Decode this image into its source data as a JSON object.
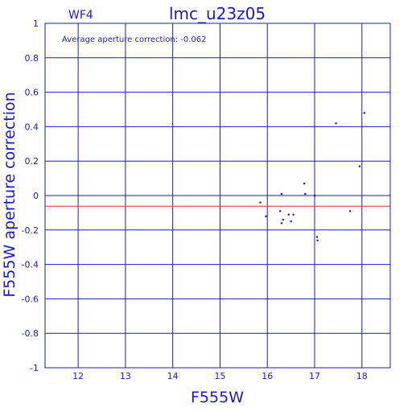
{
  "chart_data": {
    "type": "scatter",
    "title": "lmc_u23z05",
    "panel_label": "WF4",
    "annotation": "Average aperture correction: -0.062",
    "xlabel": "F555W",
    "ylabel": "F555W aperture correction",
    "xlim": [
      11.3,
      18.6
    ],
    "ylim": [
      -1,
      1
    ],
    "xticks": [
      "12",
      "13",
      "14",
      "15",
      "16",
      "17",
      "18"
    ],
    "yticks": [
      "-1",
      "-0.8",
      "-0.6",
      "-0.4",
      "-0.2",
      "0",
      "0.2",
      "0.4",
      "0.6",
      "0.8",
      "1"
    ],
    "grid": true,
    "reference_line": {
      "y": -0.062,
      "color": "#e03030"
    },
    "zero_line": {
      "y": 0
    },
    "colors": {
      "axes": "#1a1acc",
      "points": "#1a1acc"
    },
    "points": [
      {
        "x": 15.85,
        "y": -0.04
      },
      {
        "x": 15.97,
        "y": -0.12
      },
      {
        "x": 16.27,
        "y": -0.09
      },
      {
        "x": 16.3,
        "y": 0.01
      },
      {
        "x": 16.3,
        "y": -0.16
      },
      {
        "x": 16.33,
        "y": -0.14
      },
      {
        "x": 16.45,
        "y": -0.11
      },
      {
        "x": 16.5,
        "y": -0.15
      },
      {
        "x": 16.55,
        "y": -0.11
      },
      {
        "x": 16.78,
        "y": 0.07
      },
      {
        "x": 16.8,
        "y": 0.01
      },
      {
        "x": 17.0,
        "y": 0.0
      },
      {
        "x": 17.05,
        "y": -0.24
      },
      {
        "x": 17.06,
        "y": -0.26
      },
      {
        "x": 17.45,
        "y": 0.42
      },
      {
        "x": 17.75,
        "y": -0.09
      },
      {
        "x": 17.95,
        "y": 0.17
      },
      {
        "x": 18.05,
        "y": 0.48
      }
    ]
  }
}
